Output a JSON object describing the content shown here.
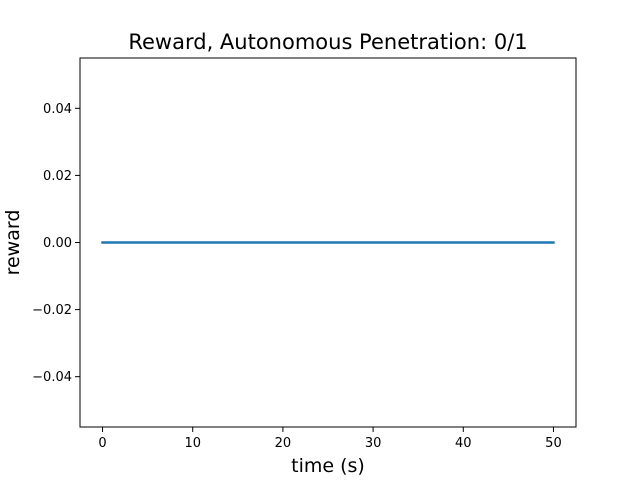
{
  "chart_data": {
    "type": "line",
    "title": "Reward, Autonomous Penetration: 0/1",
    "xlabel": "time (s)",
    "ylabel": "reward",
    "xlim": [
      -2.5,
      52.5
    ],
    "ylim": [
      -0.055,
      0.055
    ],
    "xticks": [
      0,
      10,
      20,
      30,
      40,
      50
    ],
    "xtick_labels": [
      "0",
      "10",
      "20",
      "30",
      "40",
      "50"
    ],
    "yticks": [
      -0.04,
      -0.02,
      0.0,
      0.02,
      0.04
    ],
    "ytick_labels": [
      "−0.04",
      "−0.02",
      "0.00",
      "0.02",
      "0.04"
    ],
    "grid": false,
    "series": [
      {
        "color": "#1f77b4",
        "x": [
          0,
          50
        ],
        "y": [
          0.0,
          0.0
        ]
      }
    ]
  }
}
